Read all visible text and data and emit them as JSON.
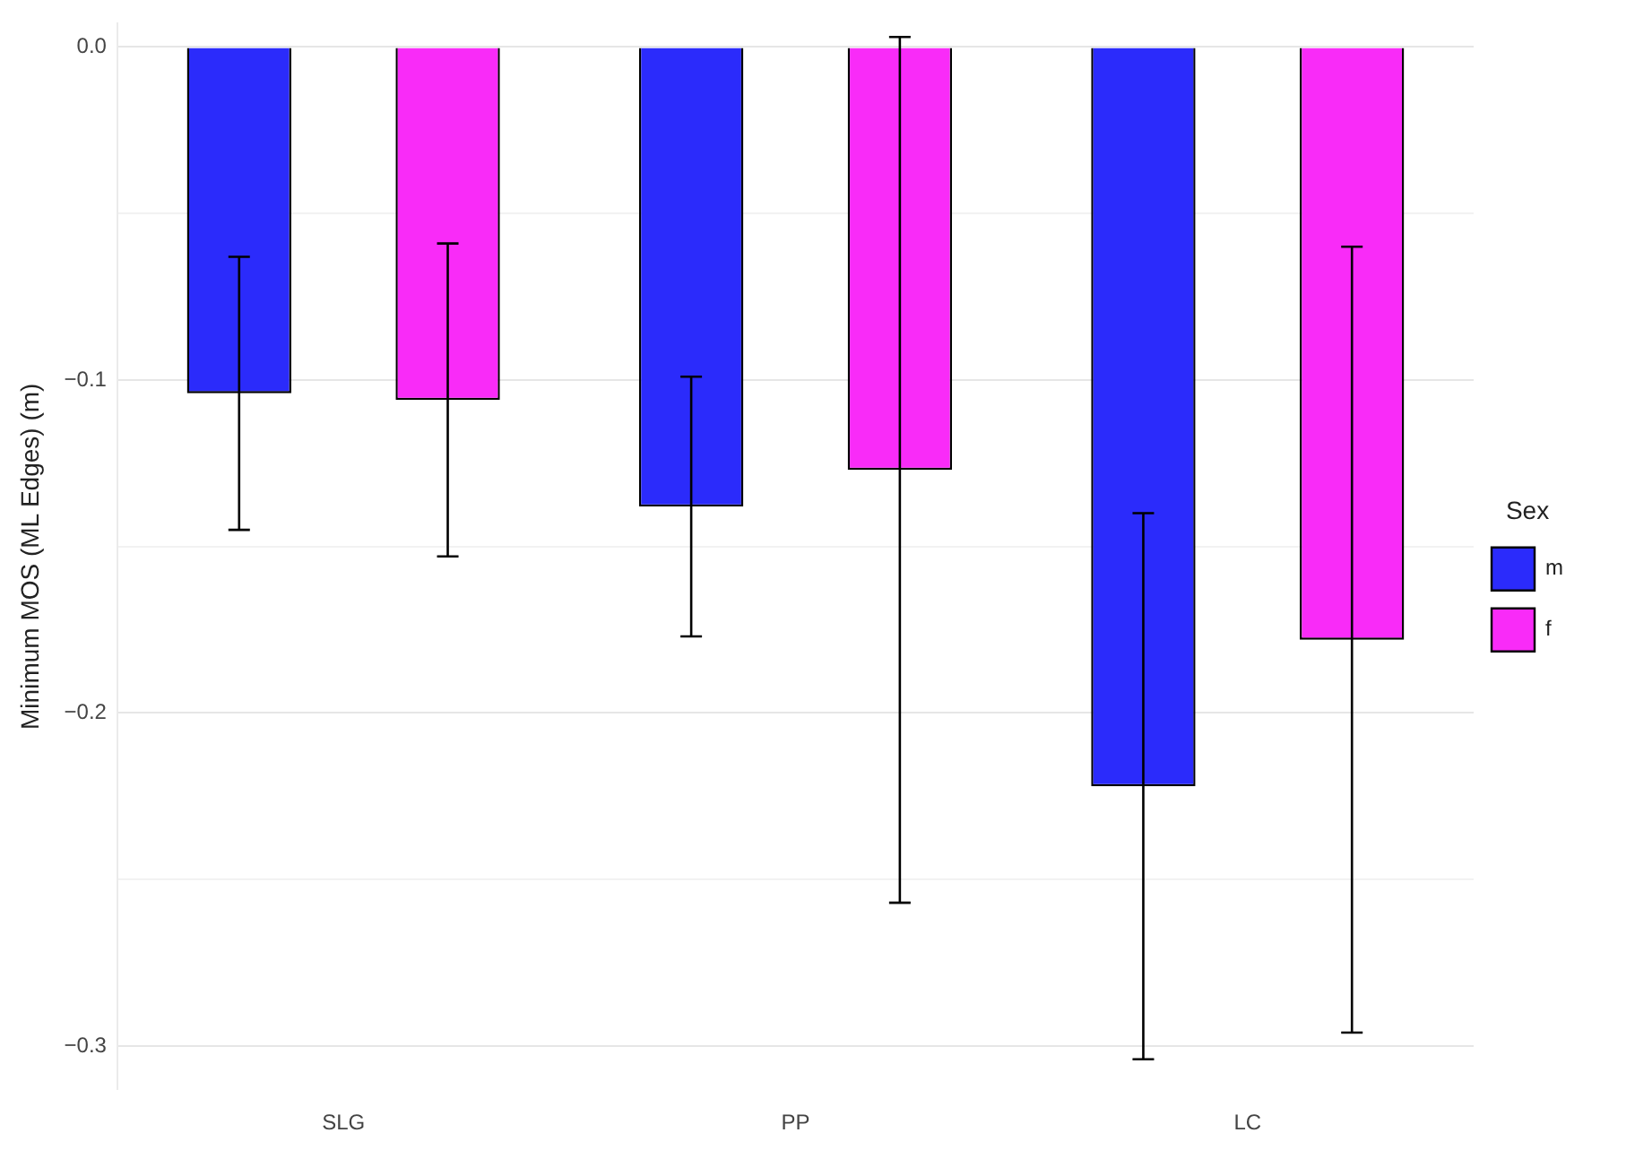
{
  "chart_data": {
    "type": "bar",
    "ylabel": "Minimum MOS (ML Edges) (m)",
    "legend_title": "Sex",
    "categories": [
      "SLG",
      "PP",
      "LC"
    ],
    "series": [
      {
        "name": "m",
        "color": "#2b2bfb",
        "values": [
          -0.104,
          -0.138,
          -0.222
        ],
        "errors": [
          0.041,
          0.039,
          0.082
        ]
      },
      {
        "name": "f",
        "color": "#f92bf8",
        "values": [
          -0.106,
          -0.127,
          -0.178
        ],
        "errors": [
          0.047,
          0.13,
          0.118
        ]
      }
    ],
    "yticks": [
      {
        "value": 0,
        "label": "0.0"
      },
      {
        "value": -0.05,
        "label": null
      },
      {
        "value": -0.1,
        "label": "−0.1"
      },
      {
        "value": -0.15,
        "label": null
      },
      {
        "value": -0.2,
        "label": "−0.2"
      },
      {
        "value": -0.25,
        "label": null
      },
      {
        "value": -0.3,
        "label": "−0.3"
      }
    ],
    "ylim": [
      -0.313,
      0.007
    ],
    "grid": "y",
    "legend": "right"
  }
}
